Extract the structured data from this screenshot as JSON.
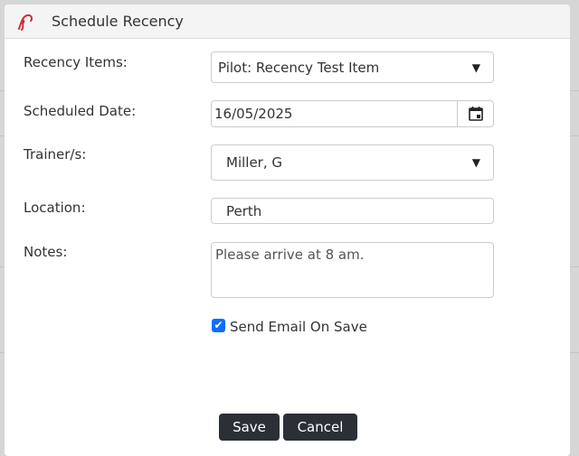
{
  "dialog": {
    "title": "Schedule Recency",
    "logo": "signature-logo"
  },
  "form": {
    "recency_items": {
      "label": "Recency Items:",
      "value": "Pilot: Recency Test Item"
    },
    "scheduled_date": {
      "label": "Scheduled Date:",
      "value": "16/05/2025",
      "icon": "calendar-icon"
    },
    "trainers": {
      "label": "Trainer/s:",
      "value": "Miller, G"
    },
    "location": {
      "label": "Location:",
      "value": "Perth"
    },
    "notes": {
      "label": "Notes:",
      "value": "Please arrive at 8 am."
    },
    "send_email": {
      "label": "Send Email On Save",
      "checked": true
    }
  },
  "buttons": {
    "save": "Save",
    "cancel": "Cancel"
  },
  "colors": {
    "accent": "#0d6efd",
    "button": "#2b2f36",
    "logo": "#c8303c"
  }
}
